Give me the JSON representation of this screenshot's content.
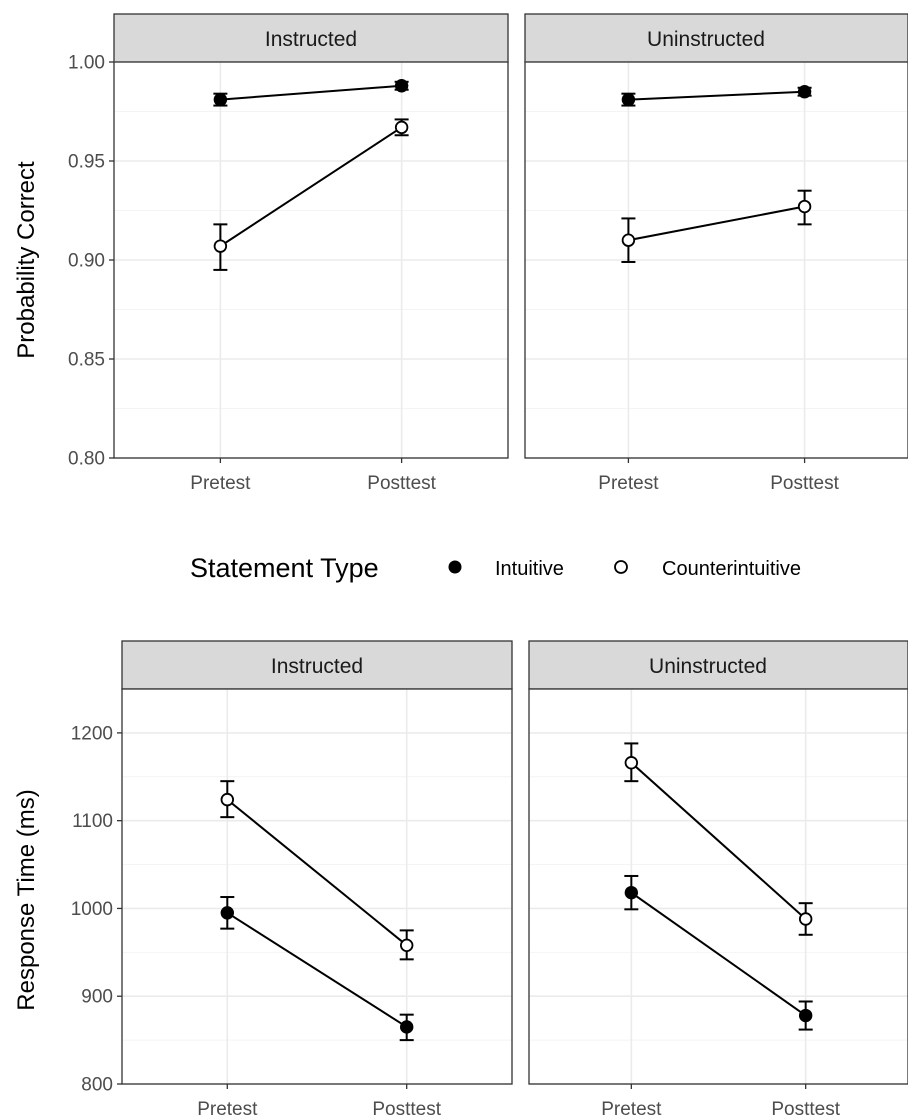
{
  "colors": {
    "strip_fill": "#d9d9d9",
    "grid_major": "#ebebeb",
    "grid_minor": "#f4f4f4",
    "frame": "#333333",
    "ink": "#000000",
    "open_fill": "#ffffff"
  },
  "legend": {
    "title": "Statement Type",
    "items": [
      {
        "label": "Intuitive",
        "marker": "filled-circle"
      },
      {
        "label": "Counterintuitive",
        "marker": "open-circle"
      }
    ],
    "position": "between-rows"
  },
  "chart_data": [
    {
      "type": "line",
      "ylabel": "Probability Correct",
      "xlabel": "",
      "categories": [
        "Pretest",
        "Posttest"
      ],
      "ylim": [
        0.8,
        1.0
      ],
      "yticks": [
        "0.80",
        "0.85",
        "0.90",
        "0.95",
        "1.00"
      ],
      "yticks_values": [
        0.8,
        0.85,
        0.9,
        0.95,
        1.0
      ],
      "grid": true,
      "panels": [
        {
          "strip": "Instructed",
          "series": [
            {
              "name": "Intuitive",
              "values": [
                0.981,
                0.988
              ],
              "lower": [
                0.978,
                0.986
              ],
              "upper": [
                0.984,
                0.99
              ]
            },
            {
              "name": "Counterintuitive",
              "values": [
                0.907,
                0.967
              ],
              "lower": [
                0.895,
                0.963
              ],
              "upper": [
                0.918,
                0.971
              ]
            }
          ]
        },
        {
          "strip": "Uninstructed",
          "series": [
            {
              "name": "Intuitive",
              "values": [
                0.981,
                0.985
              ],
              "lower": [
                0.978,
                0.983
              ],
              "upper": [
                0.984,
                0.987
              ]
            },
            {
              "name": "Counterintuitive",
              "values": [
                0.91,
                0.927
              ],
              "lower": [
                0.899,
                0.918
              ],
              "upper": [
                0.921,
                0.935
              ]
            }
          ]
        }
      ]
    },
    {
      "type": "line",
      "ylabel": "Response Time (ms)",
      "xlabel": "",
      "categories": [
        "Pretest",
        "Posttest"
      ],
      "ylim": [
        800,
        1250
      ],
      "yticks": [
        "800",
        "900",
        "1000",
        "1100",
        "1200"
      ],
      "yticks_values": [
        800,
        900,
        1000,
        1100,
        1200
      ],
      "grid": true,
      "panels": [
        {
          "strip": "Instructed",
          "series": [
            {
              "name": "Intuitive",
              "values": [
                995,
                865
              ],
              "lower": [
                977,
                850
              ],
              "upper": [
                1013,
                879
              ]
            },
            {
              "name": "Counterintuitive",
              "values": [
                1124,
                958
              ],
              "lower": [
                1104,
                942
              ],
              "upper": [
                1145,
                975
              ]
            }
          ]
        },
        {
          "strip": "Uninstructed",
          "series": [
            {
              "name": "Intuitive",
              "values": [
                1018,
                878
              ],
              "lower": [
                999,
                862
              ],
              "upper": [
                1037,
                894
              ]
            },
            {
              "name": "Counterintuitive",
              "values": [
                1166,
                988
              ],
              "lower": [
                1145,
                970
              ],
              "upper": [
                1188,
                1006
              ]
            }
          ]
        }
      ]
    }
  ]
}
